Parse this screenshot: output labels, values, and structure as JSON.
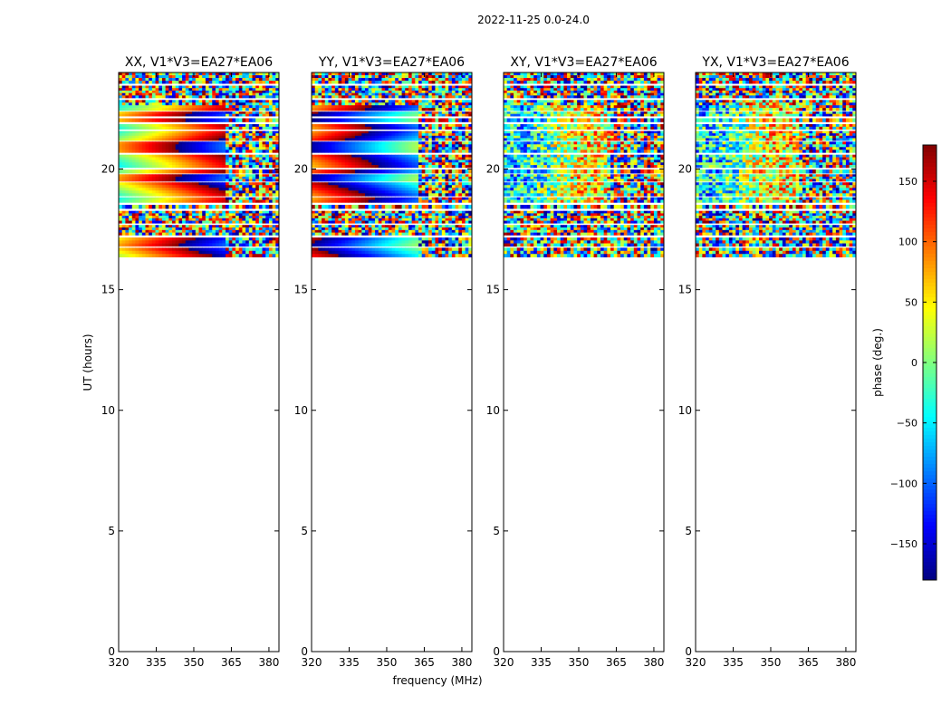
{
  "chart_data": {
    "type": "heatmap",
    "suptitle": "2022-11-25 0.0-24.0",
    "xlabel": "frequency (MHz)",
    "ylabel": "UT (hours)",
    "xlim": [
      320,
      384
    ],
    "ylim": [
      0,
      24
    ],
    "xticks": [
      320,
      335,
      350,
      365,
      380
    ],
    "yticks": [
      0,
      5,
      10,
      15,
      20
    ],
    "data_time_range": [
      16.35,
      24.0
    ],
    "panels": [
      {
        "title": "XX, V1*V3=EA27*EA06",
        "pol": "XX"
      },
      {
        "title": "YY, V1*V3=EA27*EA06",
        "pol": "YY"
      },
      {
        "title": "XY, V1*V3=EA27*EA06",
        "pol": "XY"
      },
      {
        "title": "YX, V1*V3=EA27*EA06",
        "pol": "YX"
      }
    ],
    "colorbar": {
      "label": "phase (deg.)",
      "range": [
        -180,
        180
      ],
      "ticks": [
        150,
        100,
        50,
        0,
        -50,
        -100,
        -150
      ],
      "tick_labels": [
        "150",
        "100",
        "50",
        "0",
        "−50",
        "−100",
        "−150"
      ],
      "colormap": "jet"
    }
  }
}
